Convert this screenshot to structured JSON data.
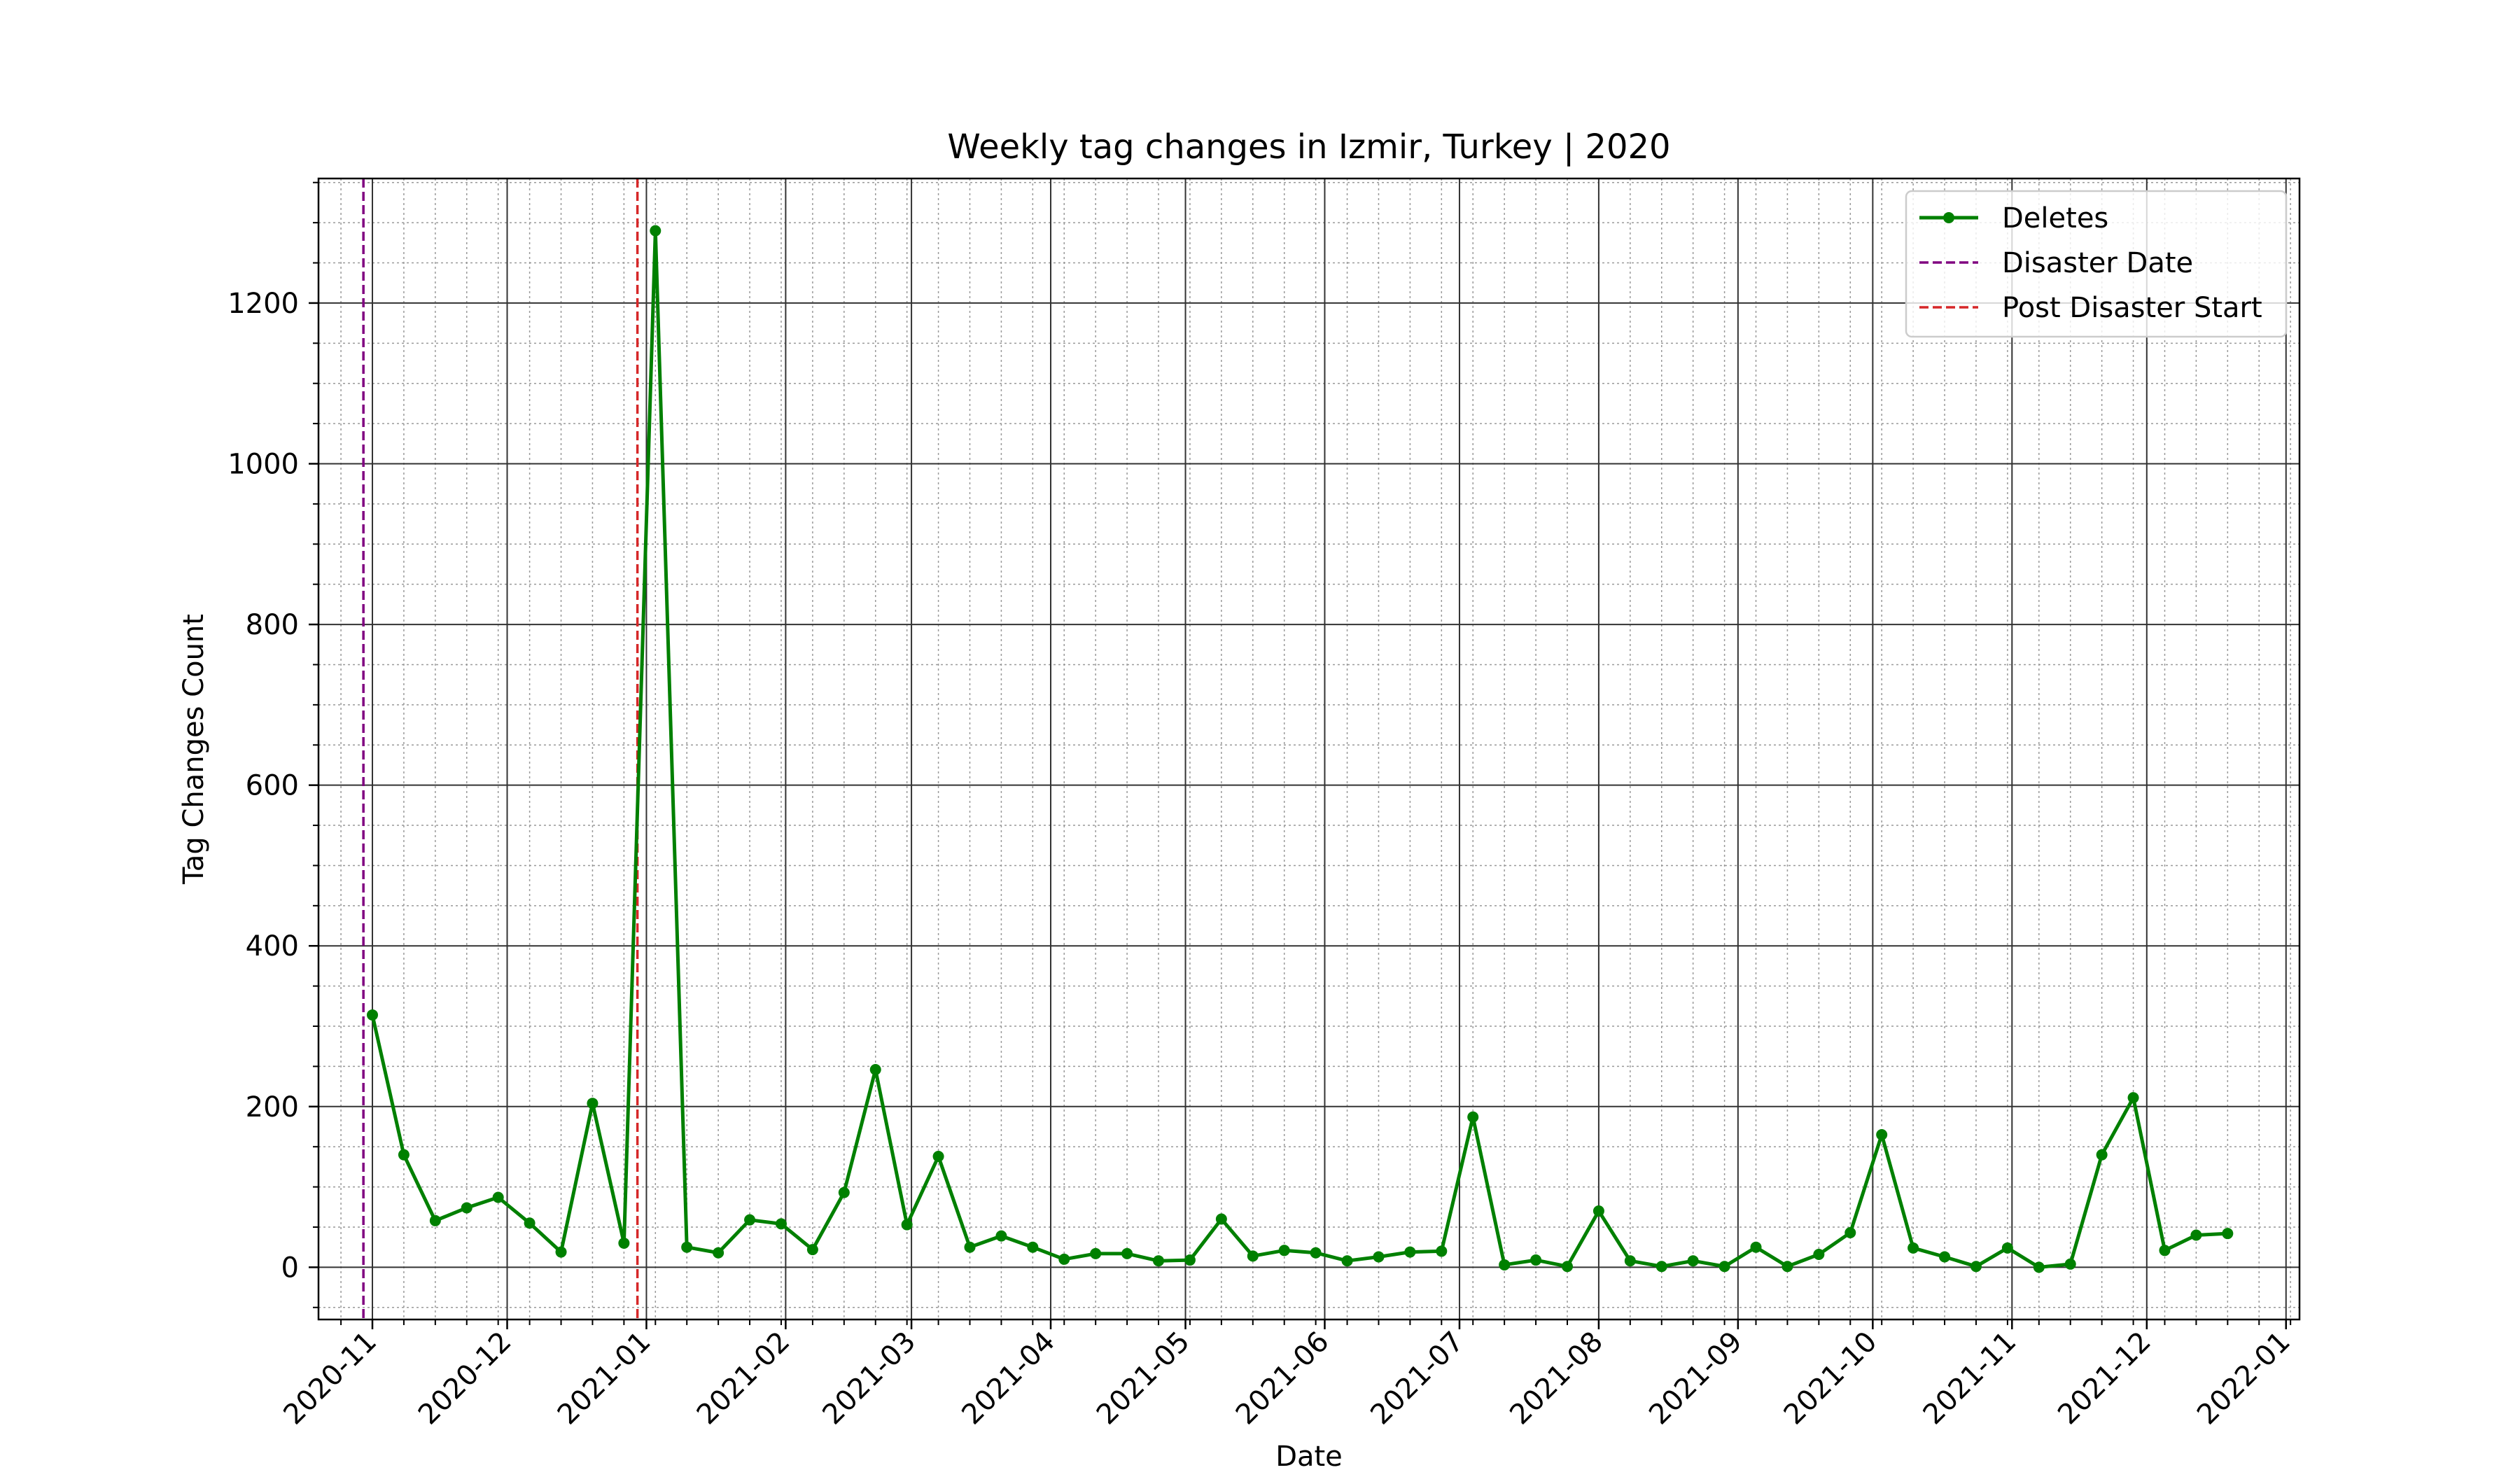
{
  "chart_data": {
    "type": "line",
    "title": "Weekly tag changes in Izmir, Turkey | 2020",
    "xlabel": "Date",
    "ylabel": "Tag Changes Count",
    "ylim": [
      -65,
      1355
    ],
    "xlim": [
      "2020-10-20",
      "2022-01-04"
    ],
    "grid": true,
    "legend_position": "top-right",
    "x_ticks": [
      "2020-11",
      "2020-12",
      "2021-01",
      "2021-02",
      "2021-03",
      "2021-04",
      "2021-05",
      "2021-06",
      "2021-07",
      "2021-08",
      "2021-09",
      "2021-10",
      "2021-11",
      "2021-12",
      "2022-01"
    ],
    "y_ticks": [
      0,
      200,
      400,
      600,
      800,
      1000,
      1200
    ],
    "vlines": [
      {
        "name": "Disaster Date",
        "date": "2020-10-30",
        "color": "#800080"
      },
      {
        "name": "Post Disaster Start",
        "date": "2020-12-30",
        "color": "#d62728"
      }
    ],
    "series": [
      {
        "name": "Deletes",
        "color": "#008000",
        "x": [
          "2020-11-01",
          "2020-11-08",
          "2020-11-15",
          "2020-11-22",
          "2020-11-29",
          "2020-12-06",
          "2020-12-13",
          "2020-12-20",
          "2020-12-27",
          "2021-01-03",
          "2021-01-10",
          "2021-01-17",
          "2021-01-24",
          "2021-01-31",
          "2021-02-07",
          "2021-02-14",
          "2021-02-21",
          "2021-02-28",
          "2021-03-07",
          "2021-03-14",
          "2021-03-21",
          "2021-03-28",
          "2021-04-04",
          "2021-04-11",
          "2021-04-18",
          "2021-04-25",
          "2021-05-02",
          "2021-05-09",
          "2021-05-16",
          "2021-05-23",
          "2021-05-30",
          "2021-06-06",
          "2021-06-13",
          "2021-06-20",
          "2021-06-27",
          "2021-07-04",
          "2021-07-11",
          "2021-07-18",
          "2021-07-25",
          "2021-08-01",
          "2021-08-08",
          "2021-08-15",
          "2021-08-22",
          "2021-08-29",
          "2021-09-05",
          "2021-09-12",
          "2021-09-19",
          "2021-09-26",
          "2021-10-03",
          "2021-10-10",
          "2021-10-17",
          "2021-10-24",
          "2021-10-31",
          "2021-11-07",
          "2021-11-14",
          "2021-11-21",
          "2021-11-28",
          "2021-12-05",
          "2021-12-12",
          "2021-12-19"
        ],
        "values": [
          314,
          140,
          58,
          74,
          87,
          55,
          19,
          204,
          30,
          1290,
          25,
          18,
          59,
          54,
          22,
          93,
          246,
          53,
          138,
          25,
          39,
          25,
          10,
          17,
          17,
          8,
          9,
          60,
          14,
          21,
          18,
          8,
          13,
          19,
          20,
          187,
          3,
          9,
          1,
          70,
          8,
          1,
          8,
          1,
          25,
          1,
          16,
          43,
          165,
          24,
          13,
          1,
          24,
          0,
          4,
          140,
          211,
          21,
          40,
          42
        ]
      }
    ]
  }
}
